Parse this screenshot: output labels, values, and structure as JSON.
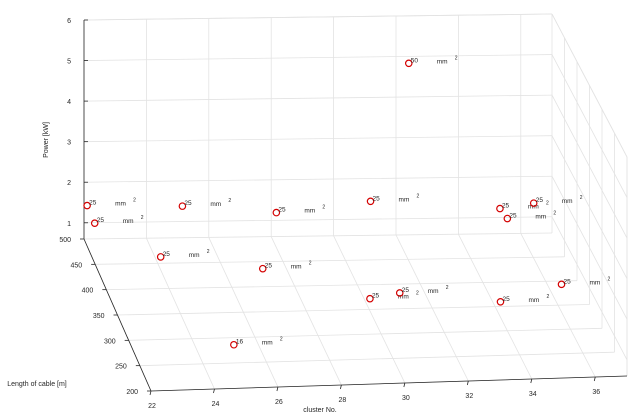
{
  "chart_data": {
    "type": "scatter3d",
    "title": "",
    "xlabel": "cluster No.",
    "ylabel": "Length of cable [m]",
    "zlabel": "Power [kW]",
    "xlim": [
      22,
      37
    ],
    "ylim": [
      200,
      500
    ],
    "zlim": [
      0.6,
      6
    ],
    "xticks": [
      22,
      24,
      26,
      28,
      30,
      32,
      34,
      36
    ],
    "yticks": [
      200,
      250,
      300,
      350,
      400,
      450,
      500
    ],
    "zticks": [
      1,
      2,
      3,
      4,
      5,
      6
    ],
    "grid": true,
    "marker_color": "#d40000",
    "unit": "mm",
    "unit_superscript": "2",
    "points": [
      {
        "x": 25,
        "y": 254,
        "z": 1.0,
        "label": "16"
      },
      {
        "x": 22,
        "y": 452,
        "z": 1.59,
        "label": "25"
      },
      {
        "x": 22,
        "y": 486,
        "z": 1.6,
        "label": "25"
      },
      {
        "x": 24,
        "y": 437,
        "z": 0.92,
        "label": "25"
      },
      {
        "x": 25,
        "y": 479,
        "z": 1.64,
        "label": "25"
      },
      {
        "x": 27,
        "y": 402,
        "z": 1.02,
        "label": "25"
      },
      {
        "x": 28,
        "y": 478,
        "z": 1.46,
        "label": "25"
      },
      {
        "x": 30,
        "y": 347,
        "z": 0.9,
        "label": "25"
      },
      {
        "x": 31,
        "y": 476,
        "z": 1.73,
        "label": "25"
      },
      {
        "x": 31,
        "y": 354,
        "z": 0.94,
        "label": "25"
      },
      {
        "x": 32,
        "y": 447,
        "z": 5.47,
        "label": "50"
      },
      {
        "x": 34,
        "y": 328,
        "z": 0.98,
        "label": "25"
      },
      {
        "x": 35,
        "y": 458,
        "z": 1.72,
        "label": "25"
      },
      {
        "x": 35,
        "y": 428,
        "z": 1.83,
        "label": "25"
      },
      {
        "x": 36,
        "y": 448,
        "z": 1.96,
        "label": "25"
      },
      {
        "x": 36,
        "y": 336,
        "z": 1.28,
        "label": "25"
      }
    ]
  }
}
